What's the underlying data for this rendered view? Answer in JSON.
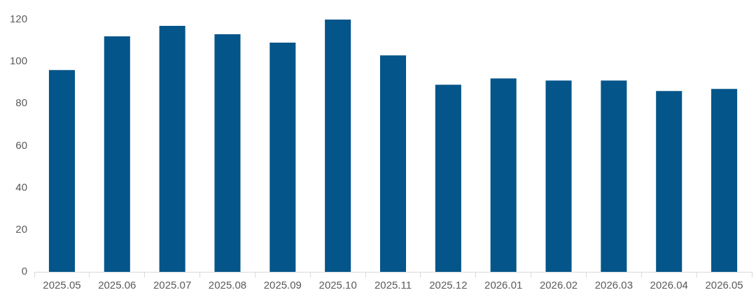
{
  "chart_data": {
    "type": "bar",
    "categories": [
      "2025.05",
      "2025.06",
      "2025.07",
      "2025.08",
      "2025.09",
      "2025.10",
      "2025.11",
      "2025.12",
      "2026.01",
      "2026.02",
      "2026.03",
      "2026.04",
      "2026.05"
    ],
    "values": [
      96,
      112,
      117,
      113,
      109,
      120,
      103,
      89,
      92,
      91,
      91,
      86,
      87
    ],
    "color": "#03558a",
    "ylim": [
      0,
      120
    ],
    "yticks": [
      0,
      20,
      40,
      60,
      80,
      100,
      120
    ],
    "grid": false,
    "legend": false
  }
}
